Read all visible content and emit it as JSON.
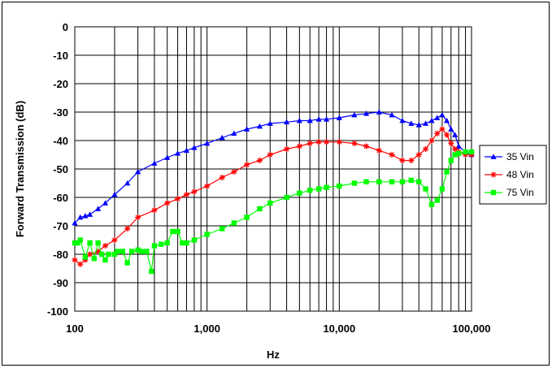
{
  "chart_data": {
    "type": "line",
    "title": "",
    "xlabel": "Hz",
    "ylabel": "Forward Transmission (dB)",
    "xscale": "log",
    "xlim": [
      100,
      100000
    ],
    "ylim": [
      -100,
      0
    ],
    "xticks": [
      100,
      1000,
      10000,
      100000
    ],
    "xtick_labels": [
      "100",
      "1,000",
      "10,000",
      "100,000"
    ],
    "yticks": [
      0,
      -10,
      -20,
      -30,
      -40,
      -50,
      -60,
      -70,
      -80,
      -90,
      -100
    ],
    "ytick_labels": [
      "0",
      "-10",
      "-20",
      "-30",
      "-40",
      "-50",
      "-60",
      "-70",
      "-80",
      "-90",
      "-100"
    ],
    "grid": true,
    "legend_position": "right",
    "series": [
      {
        "name": "35 Vin",
        "color": "#0000ff",
        "marker": "triangle",
        "x": [
          100,
          110,
          120,
          130,
          150,
          170,
          200,
          250,
          300,
          400,
          500,
          600,
          700,
          800,
          1000,
          1300,
          1600,
          2000,
          2500,
          3000,
          4000,
          5000,
          6000,
          7000,
          8000,
          10000,
          13000,
          16000,
          20000,
          25000,
          30000,
          35000,
          40000,
          45000,
          50000,
          55000,
          60000,
          65000,
          70000,
          75000,
          80000,
          90000,
          100000
        ],
        "y": [
          -69,
          -67,
          -66.5,
          -66,
          -64,
          -62,
          -59,
          -55,
          -51,
          -48,
          -46,
          -44.5,
          -43.5,
          -42.5,
          -41,
          -39,
          -37.5,
          -36,
          -35,
          -34,
          -33.5,
          -33,
          -33,
          -32.5,
          -32.5,
          -32,
          -31,
          -30.5,
          -30,
          -31,
          -33,
          -34,
          -34.5,
          -34,
          -33,
          -32,
          -31,
          -33,
          -36,
          -38,
          -42,
          -44,
          -45
        ]
      },
      {
        "name": "48 Vin",
        "color": "#ff0000",
        "marker": "star",
        "x": [
          100,
          110,
          120,
          130,
          150,
          170,
          200,
          250,
          300,
          400,
          500,
          600,
          700,
          800,
          1000,
          1300,
          1600,
          2000,
          2500,
          3000,
          4000,
          5000,
          6000,
          7000,
          8000,
          10000,
          13000,
          16000,
          20000,
          25000,
          30000,
          35000,
          40000,
          45000,
          50000,
          55000,
          60000,
          65000,
          70000,
          75000,
          80000,
          90000,
          100000
        ],
        "y": [
          -82,
          -83.5,
          -82,
          -80,
          -79,
          -77,
          -75,
          -71,
          -67,
          -64.5,
          -62,
          -60.5,
          -59,
          -58,
          -56,
          -53,
          -51,
          -48.5,
          -47,
          -45,
          -43,
          -42,
          -41,
          -40.5,
          -40.5,
          -40.5,
          -41,
          -42,
          -43.5,
          -45,
          -47,
          -47,
          -45,
          -43,
          -40,
          -37.5,
          -36,
          -38,
          -41,
          -43,
          -44,
          -45,
          -45
        ]
      },
      {
        "name": "75 Vin",
        "color": "#00ff00",
        "marker": "square",
        "x": [
          100,
          105,
          110,
          120,
          130,
          140,
          150,
          160,
          170,
          180,
          200,
          210,
          230,
          250,
          270,
          300,
          320,
          350,
          380,
          400,
          450,
          500,
          550,
          600,
          650,
          700,
          800,
          1000,
          1300,
          1600,
          2000,
          2500,
          3000,
          4000,
          5000,
          6000,
          7000,
          8000,
          10000,
          13000,
          16000,
          20000,
          25000,
          30000,
          35000,
          40000,
          45000,
          50000,
          55000,
          60000,
          65000,
          70000,
          75000,
          80000,
          90000,
          100000
        ],
        "y": [
          -76,
          -76,
          -75,
          -81,
          -76,
          -81.5,
          -76,
          -80,
          -82,
          -80,
          -80,
          -79,
          -79,
          -83,
          -79,
          -78.5,
          -79,
          -79,
          -86,
          -77,
          -76.5,
          -76,
          -72,
          -72,
          -76,
          -76,
          -75,
          -73,
          -71,
          -69,
          -67,
          -64,
          -62,
          -60,
          -58.5,
          -57.5,
          -57,
          -56.5,
          -56,
          -55,
          -54.5,
          -54.5,
          -54.5,
          -54.5,
          -54,
          -54.5,
          -57,
          -62.5,
          -61,
          -57,
          -51,
          -47,
          -45,
          -44.5,
          -44,
          -44
        ]
      }
    ]
  }
}
